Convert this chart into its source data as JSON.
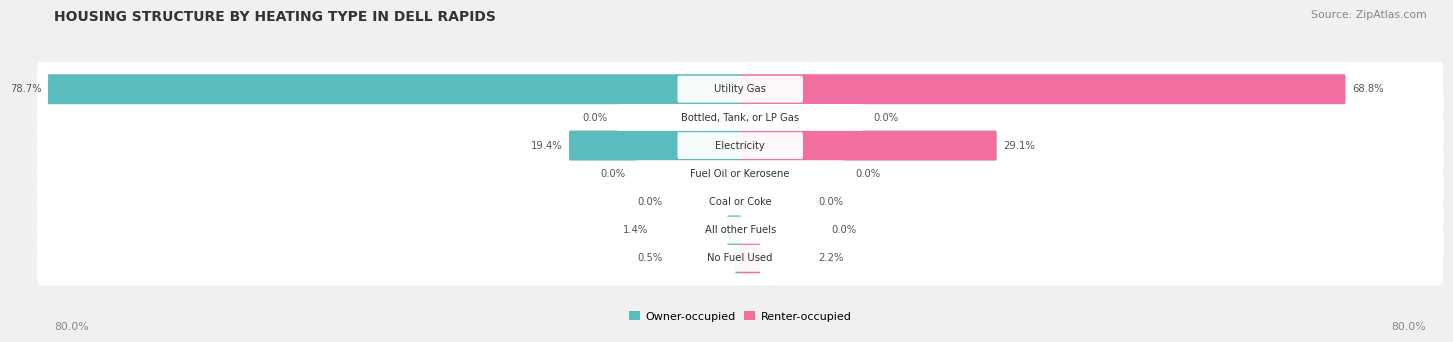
{
  "title": "HOUSING STRUCTURE BY HEATING TYPE IN DELL RAPIDS",
  "source": "Source: ZipAtlas.com",
  "categories": [
    "Utility Gas",
    "Bottled, Tank, or LP Gas",
    "Electricity",
    "Fuel Oil or Kerosene",
    "Coal or Coke",
    "All other Fuels",
    "No Fuel Used"
  ],
  "owner_values": [
    78.7,
    0.0,
    19.4,
    0.0,
    0.0,
    1.4,
    0.5
  ],
  "renter_values": [
    68.8,
    0.0,
    29.1,
    0.0,
    0.0,
    0.0,
    2.2
  ],
  "owner_color": "#5bbcbf",
  "renter_color": "#f06fa0",
  "max_val": 80.0,
  "background_color": "#f0f0f0",
  "row_bg_color": "#e2e2e8",
  "title_color": "#333333",
  "source_color": "#888888",
  "value_color": "#555555",
  "label_color": "#333333",
  "axis_tick_color": "#888888",
  "legend_owner": "Owner-occupied",
  "legend_renter": "Renter-occupied",
  "axis_left_label": "80.0%",
  "axis_right_label": "80.0%"
}
